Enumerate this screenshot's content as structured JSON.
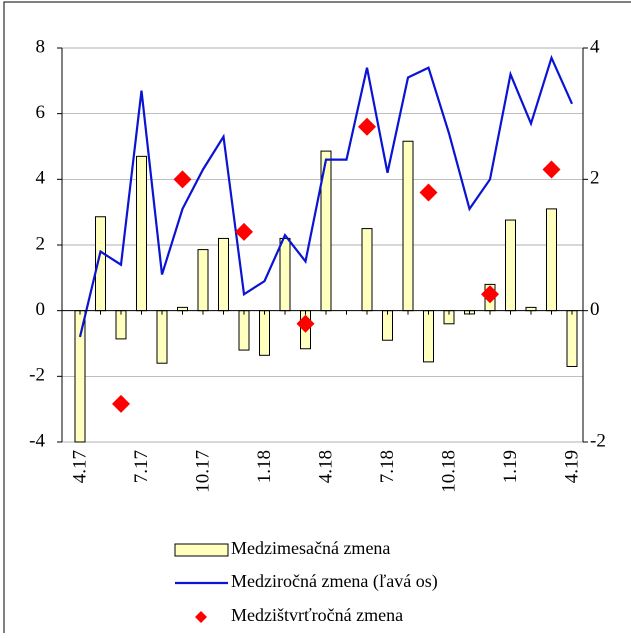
{
  "chart_data": {
    "type": "bar",
    "categories": [
      "4.17",
      null,
      null,
      "7.17",
      null,
      null,
      "10.17",
      null,
      null,
      "1.18",
      null,
      null,
      "4.18",
      null,
      null,
      "7.18",
      null,
      null,
      "10.18",
      null,
      null,
      "1.19",
      null,
      null,
      "4.19"
    ],
    "series": [
      {
        "name": "Medzimesačná zmena",
        "type": "bar",
        "axis": "y2",
        "color": "#ffffc0",
        "values": [
          -2.0,
          1.43,
          -0.43,
          2.35,
          -0.8,
          0.05,
          0.93,
          1.1,
          -0.6,
          -0.68,
          1.1,
          -0.58,
          2.43,
          0,
          1.25,
          -0.45,
          2.58,
          -0.78,
          -0.2,
          -0.05,
          0.4,
          1.38,
          0.05,
          1.55,
          -0.85
        ]
      },
      {
        "name": "Medziročná zmena (ľavá os)",
        "type": "line",
        "color": "#0a14d2",
        "values": [
          -0.8,
          1.8,
          1.4,
          6.7,
          1.1,
          3.1,
          4.3,
          5.3,
          0.5,
          0.9,
          2.3,
          1.5,
          4.6,
          4.6,
          7.4,
          4.2,
          7.1,
          7.4,
          5.4,
          3.1,
          4.0,
          7.2,
          5.7,
          7.7,
          6.3
        ]
      },
      {
        "name": "Medzištvrťročná zmena",
        "type": "scatter",
        "axis": "y2",
        "color": "#ff0000",
        "values": [
          null,
          null,
          -1.42,
          null,
          null,
          2.0,
          null,
          null,
          1.2,
          null,
          null,
          -0.2,
          null,
          null,
          2.8,
          null,
          null,
          1.8,
          null,
          null,
          0.25,
          null,
          null,
          2.15,
          null
        ]
      }
    ],
    "ylim": [
      -4,
      8
    ],
    "yticks": [
      -4,
      -2,
      0,
      2,
      4,
      6,
      8
    ],
    "y2lim": [
      -2,
      4
    ],
    "y2ticks": [
      -2,
      0,
      2,
      4
    ],
    "grid": true
  }
}
